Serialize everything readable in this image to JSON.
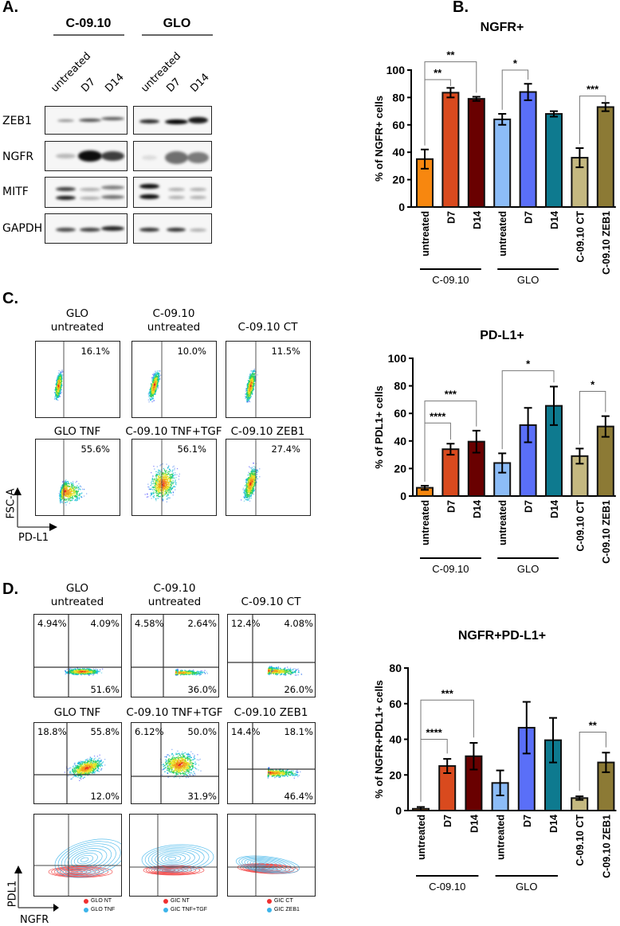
{
  "panel_labels": {
    "a": "A.",
    "b": "B.",
    "c": "C.",
    "d": "D."
  },
  "western_blot": {
    "groups": [
      "C-09.10",
      "GLO"
    ],
    "lanes": [
      "untreated",
      "D7",
      "D14",
      "untreated",
      "D7",
      "D14"
    ],
    "rows": [
      "ZEB1",
      "NGFR",
      "MITF",
      "GAPDH"
    ]
  },
  "flow_c": {
    "x_axis": "PD-L1",
    "y_axis": "FSC-A",
    "plots": [
      {
        "title1": "GLO",
        "title2": "untreated",
        "pct": "16.1%"
      },
      {
        "title1": "C-09.10",
        "title2": "untreated",
        "pct": "10.0%"
      },
      {
        "title1": "",
        "title2": "C-09.10 CT",
        "pct": "11.5%"
      },
      {
        "title1": "",
        "title2": "GLO TNF",
        "pct": "55.6%"
      },
      {
        "title1": "",
        "title2": "C-09.10 TNF+TGF",
        "pct": "56.1%"
      },
      {
        "title1": "",
        "title2": "C-09.10 ZEB1",
        "pct": "27.4%"
      }
    ]
  },
  "flow_d": {
    "x_axis": "NGFR",
    "y_axis": "PDL1",
    "plots": [
      {
        "title1": "GLO",
        "title2": "untreated",
        "ul": "4.94%",
        "ur": "4.09%",
        "lr": "51.6%"
      },
      {
        "title1": "C-09.10",
        "title2": "untreated",
        "ul": "4.58%",
        "ur": "2.64%",
        "lr": "36.0%"
      },
      {
        "title1": "",
        "title2": "C-09.10 CT",
        "ul": "12.4%",
        "ur": "4.08%",
        "lr": "26.0%"
      },
      {
        "title1": "",
        "title2": "GLO TNF",
        "ul": "18.8%",
        "ur": "55.8%",
        "lr": "12.0%"
      },
      {
        "title1": "",
        "title2": "C-09.10 TNF+TGF",
        "ul": "6.12%",
        "ur": "50.0%",
        "lr": "31.9%"
      },
      {
        "title1": "",
        "title2": "C-09.10 ZEB1",
        "ul": "14.4%",
        "ur": "18.1%",
        "lr": "46.4%"
      }
    ],
    "overlays": [
      {
        "legend": [
          "GLO NT",
          "GLO TNF"
        ]
      },
      {
        "legend": [
          "GIC NT",
          "GIC TNF+TGF"
        ]
      },
      {
        "legend": [
          "GIC CT",
          "GIC ZEB1"
        ]
      }
    ],
    "overlay_colors": [
      "#f03030",
      "#3cb4ea"
    ]
  },
  "chart_data": [
    {
      "type": "bar",
      "title": "NGFR+",
      "ylabel": "% of NGFR+ cells",
      "ylim": [
        0,
        100
      ],
      "yticks": [
        0,
        20,
        40,
        60,
        80,
        100
      ],
      "categories": [
        "untreated",
        "D7",
        "D14",
        "untreated",
        "D7",
        "D14",
        "C-09.10 CT",
        "C-09.10 ZEB1"
      ],
      "groups": [
        {
          "label": "C-09.10",
          "span": [
            0,
            2
          ]
        },
        {
          "label": "GLO",
          "span": [
            3,
            5
          ]
        }
      ],
      "values": [
        35,
        83.5,
        79,
        64,
        84,
        68,
        36,
        73
      ],
      "errors": [
        7,
        3.5,
        1.5,
        4,
        6,
        2,
        7,
        3
      ],
      "colors": [
        "#f7870f",
        "#d94a1e",
        "#690000",
        "#8cbcf7",
        "#5a6ff8",
        "#0e7a8f",
        "#c4b880",
        "#8c7a35"
      ],
      "significance": [
        {
          "from": 0,
          "to": 1,
          "level": 93,
          "label": "**"
        },
        {
          "from": 0,
          "to": 2,
          "level": 106,
          "label": "**"
        },
        {
          "from": 3,
          "to": 4,
          "level": 100,
          "label": "*"
        },
        {
          "from": 6,
          "to": 7,
          "level": 81,
          "label": "***"
        }
      ]
    },
    {
      "type": "bar",
      "title": "PD-L1+",
      "ylabel": "% of PDL1+ cells",
      "ylim": [
        0,
        100
      ],
      "yticks": [
        0,
        20,
        40,
        60,
        80,
        100
      ],
      "categories": [
        "untreated",
        "D7",
        "D14",
        "untreated",
        "D7",
        "D14",
        "C-09.10 CT",
        "C-09.10 ZEB1"
      ],
      "groups": [
        {
          "label": "C-09.10",
          "span": [
            0,
            2
          ]
        },
        {
          "label": "GLO",
          "span": [
            3,
            5
          ]
        }
      ],
      "values": [
        6,
        34,
        39.5,
        24,
        51.5,
        65.5,
        29,
        50.5
      ],
      "errors": [
        1.5,
        4,
        8,
        7,
        12.5,
        14,
        5.5,
        7.5
      ],
      "colors": [
        "#f7870f",
        "#d94a1e",
        "#690000",
        "#8cbcf7",
        "#5a6ff8",
        "#0e7a8f",
        "#c4b880",
        "#8c7a35"
      ],
      "significance": [
        {
          "from": 0,
          "to": 1,
          "level": 53,
          "label": "****"
        },
        {
          "from": 0,
          "to": 2,
          "level": 69,
          "label": "***"
        },
        {
          "from": 3,
          "to": 5,
          "level": 91,
          "label": "*"
        },
        {
          "from": 6,
          "to": 7,
          "level": 76,
          "label": "*"
        }
      ]
    },
    {
      "type": "bar",
      "title": "NGFR+PD-L1+",
      "ylabel": "% of NGFR+PDL1+ cells",
      "ylim": [
        0,
        80
      ],
      "yticks": [
        0,
        20,
        40,
        60,
        80
      ],
      "categories": [
        "untreated",
        "D7",
        "D14",
        "untreated",
        "D7",
        "D14",
        "C-09.10 CT",
        "C-09.10 ZEB1"
      ],
      "groups": [
        {
          "label": "C-09.10",
          "span": [
            0,
            2
          ]
        },
        {
          "label": "GLO",
          "span": [
            3,
            5
          ]
        }
      ],
      "values": [
        1,
        25,
        30.5,
        15.5,
        46.5,
        39.5,
        7,
        27
      ],
      "errors": [
        1,
        4,
        7.5,
        7,
        14.5,
        12.5,
        1,
        5.5
      ],
      "colors": [
        "#f7870f",
        "#d94a1e",
        "#690000",
        "#8cbcf7",
        "#5a6ff8",
        "#0e7a8f",
        "#c4b880",
        "#8c7a35"
      ],
      "significance": [
        {
          "from": 0,
          "to": 1,
          "level": 40,
          "label": "****"
        },
        {
          "from": 0,
          "to": 2,
          "level": 62,
          "label": "***"
        },
        {
          "from": 6,
          "to": 7,
          "level": 44,
          "label": "**"
        }
      ]
    }
  ]
}
